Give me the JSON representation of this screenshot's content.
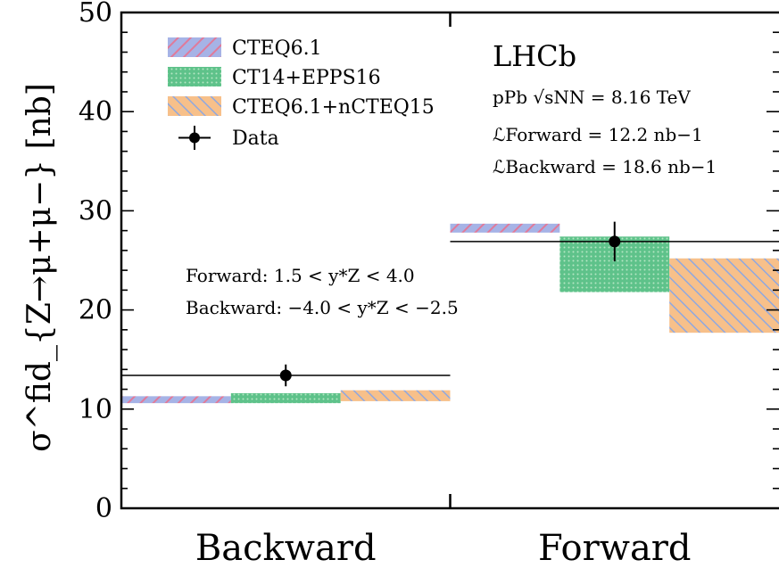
{
  "chart_data": {
    "type": "bar",
    "categories": [
      "Backward",
      "Forward"
    ],
    "ylabel": "σ^fid_{Z→μ+μ−} [nb]",
    "ylim": [
      0,
      50
    ],
    "yticks": [
      0,
      10,
      20,
      30,
      40,
      50
    ],
    "experiment": "LHCb",
    "energy": "pPb √sNN = 8.16 TeV",
    "lumi_forward": "ℒForward = 12.2 nb−1",
    "lumi_backward": "ℒBackward = 18.6 nb−1",
    "range_forward": "Forward: 1.5 < y*Z < 4.0",
    "range_backward": "Backward: −4.0 < y*Z < −2.5",
    "legend": {
      "cteq": "CTEQ6.1",
      "epps": "CT14+EPPS16",
      "ncteq": "CTEQ6.1+nCTEQ15",
      "data": "Data"
    },
    "series": [
      {
        "name": "CTEQ6.1",
        "style": "hatch",
        "colors": {
          "fill": "#a6b3e6",
          "hatch": "#e07a9a"
        },
        "bands": [
          [
            10.6,
            11.3
          ],
          [
            27.8,
            28.7
          ]
        ]
      },
      {
        "name": "CT14+EPPS16",
        "style": "dotted",
        "colors": {
          "fill": "#5ec28a",
          "dot": "#b6e6c4"
        },
        "bands": [
          [
            10.6,
            11.6
          ],
          [
            21.8,
            27.4
          ]
        ]
      },
      {
        "name": "CTEQ6.1+nCTEQ15",
        "style": "hatch",
        "colors": {
          "fill": "#f7c08a",
          "hatch": "#8fa8e0"
        },
        "bands": [
          [
            10.8,
            11.9
          ],
          [
            17.7,
            25.2
          ]
        ]
      }
    ],
    "data_points": [
      {
        "category": "Backward",
        "value": 13.4,
        "err": 1.1
      },
      {
        "category": "Forward",
        "value": 26.9,
        "err": 2.0
      }
    ]
  }
}
